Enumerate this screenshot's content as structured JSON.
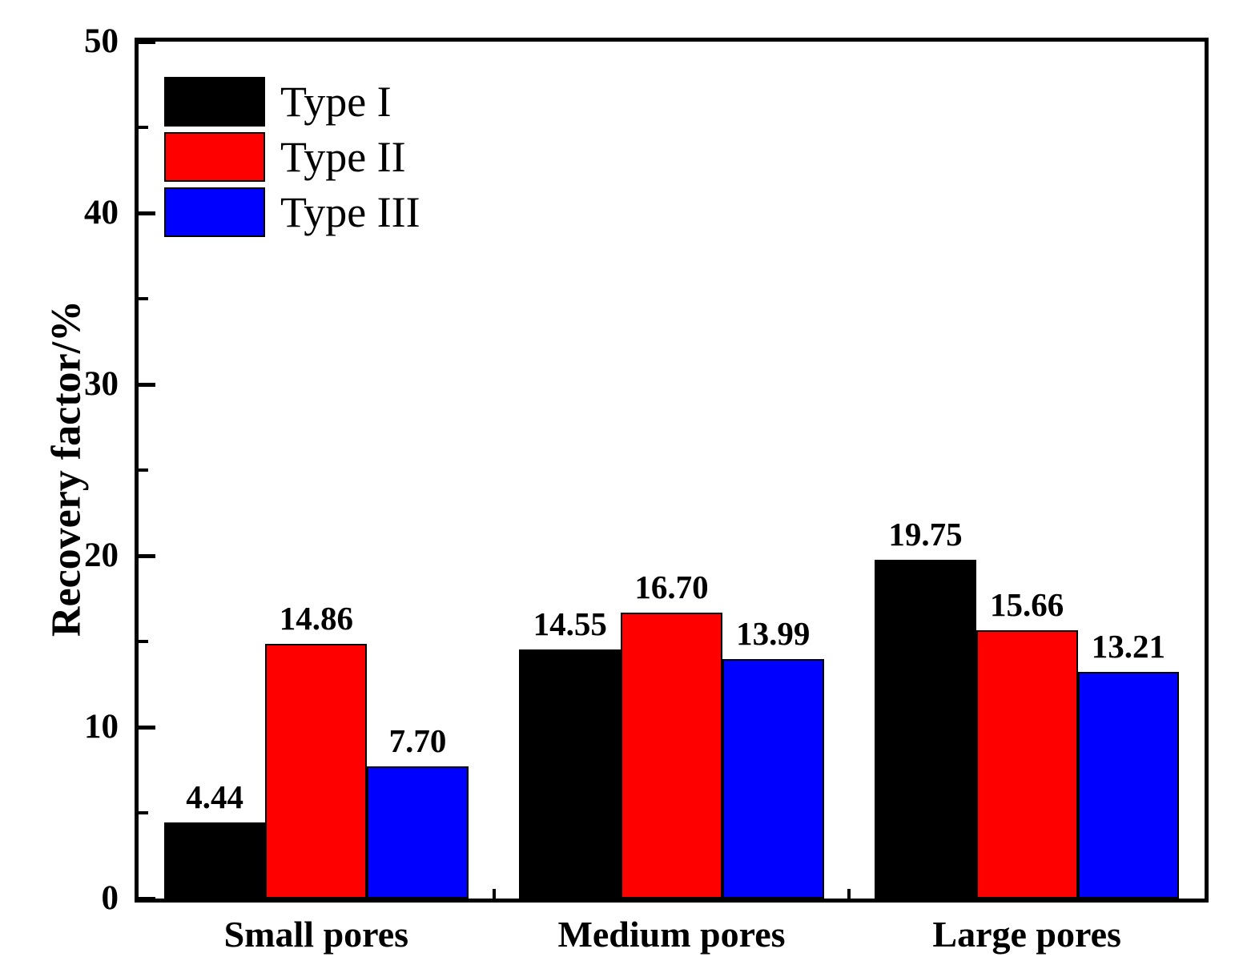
{
  "chart_data": {
    "type": "bar",
    "title": "",
    "categories": [
      "Small pores",
      "Medium pores",
      "Large pores"
    ],
    "series": [
      {
        "name": "Type I",
        "color": "#000000",
        "values": [
          4.44,
          14.55,
          19.75
        ],
        "labels": [
          "4.44",
          "14.55",
          "19.75"
        ]
      },
      {
        "name": "Type II",
        "color": "#ff0000",
        "values": [
          14.86,
          16.7,
          15.66
        ],
        "labels": [
          "14.86",
          "16.70",
          "15.66"
        ]
      },
      {
        "name": "Type III",
        "color": "#0000ff",
        "values": [
          7.7,
          13.99,
          13.21
        ],
        "labels": [
          "7.70",
          "13.99",
          "13.21"
        ]
      }
    ],
    "xlabel": "",
    "ylabel": "Recovery factor/%",
    "ylim": [
      0,
      50
    ],
    "y_major_ticks": [
      "0",
      "10",
      "20",
      "30",
      "40",
      "50"
    ],
    "y_minor_ticks": [
      5,
      15,
      25,
      35,
      45
    ],
    "tick_direction": "in",
    "value_labels_shown": true,
    "legend_position": "top-left",
    "grid": false,
    "frame": "full-box",
    "text_color": "#000000",
    "background_color": "#ffffff"
  }
}
